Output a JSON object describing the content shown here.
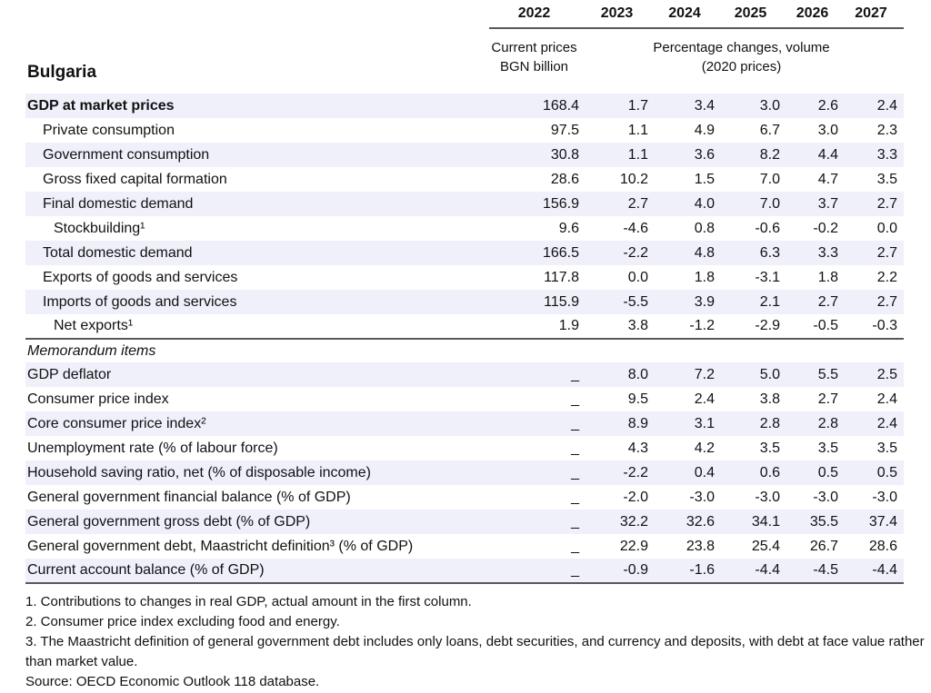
{
  "table": {
    "region_label": "Bulgaria",
    "years": [
      "2022",
      "2023",
      "2024",
      "2025",
      "2026",
      "2027"
    ],
    "unit_first": {
      "line1": "Current prices",
      "line2": "BGN billion"
    },
    "unit_rest": {
      "line1": "Percentage changes, volume",
      "line2": "(2020 prices)"
    },
    "rows": [
      {
        "type": "data",
        "label": "GDP at market prices",
        "indent": 0,
        "bold": true,
        "values": [
          "168.4",
          "1.7",
          "3.4",
          "3.0",
          "2.6",
          "2.4"
        ]
      },
      {
        "type": "data",
        "label": "Private consumption",
        "indent": 1,
        "values": [
          "97.5",
          "1.1",
          "4.9",
          "6.7",
          "3.0",
          "2.3"
        ]
      },
      {
        "type": "data",
        "label": "Government consumption",
        "indent": 1,
        "values": [
          "30.8",
          "1.1",
          "3.6",
          "8.2",
          "4.4",
          "3.3"
        ]
      },
      {
        "type": "data",
        "label": "Gross fixed capital formation",
        "indent": 1,
        "values": [
          "28.6",
          "10.2",
          "1.5",
          "7.0",
          "4.7",
          "3.5"
        ]
      },
      {
        "type": "data",
        "label": "Final domestic demand",
        "indent": 1,
        "values": [
          "156.9",
          "2.7",
          "4.0",
          "7.0",
          "3.7",
          "2.7"
        ]
      },
      {
        "type": "data",
        "label": "Stockbuilding¹",
        "indent": 2,
        "values": [
          "9.6",
          "-4.6",
          "0.8",
          "-0.6",
          "-0.2",
          "0.0"
        ]
      },
      {
        "type": "data",
        "label": "Total domestic demand",
        "indent": 1,
        "values": [
          "166.5",
          "-2.2",
          "4.8",
          "6.3",
          "3.3",
          "2.7"
        ]
      },
      {
        "type": "data",
        "label": "Exports of goods and services",
        "indent": 1,
        "values": [
          "117.8",
          "0.0",
          "1.8",
          "-3.1",
          "1.8",
          "2.2"
        ]
      },
      {
        "type": "data",
        "label": "Imports of goods and services",
        "indent": 1,
        "values": [
          "115.9",
          "-5.5",
          "3.9",
          "2.1",
          "2.7",
          "2.7"
        ]
      },
      {
        "type": "data",
        "label": "Net exports¹",
        "indent": 2,
        "values": [
          "1.9",
          "3.8",
          "-1.2",
          "-2.9",
          "-0.5",
          "-0.3"
        ]
      },
      {
        "type": "section",
        "label": "Memorandum items"
      },
      {
        "type": "data",
        "label": "GDP deflator",
        "indent": 0,
        "values": [
          "_",
          "8.0",
          "7.2",
          "5.0",
          "5.5",
          "2.5"
        ]
      },
      {
        "type": "data",
        "label": "Consumer price index",
        "indent": 0,
        "values": [
          "_",
          "9.5",
          "2.4",
          "3.8",
          "2.7",
          "2.4"
        ]
      },
      {
        "type": "data",
        "label": "Core consumer price index²",
        "indent": 0,
        "values": [
          "_",
          "8.9",
          "3.1",
          "2.8",
          "2.8",
          "2.4"
        ]
      },
      {
        "type": "data",
        "label": "Unemployment rate (% of labour force)",
        "indent": 0,
        "values": [
          "_",
          "4.3",
          "4.2",
          "3.5",
          "3.5",
          "3.5"
        ]
      },
      {
        "type": "data",
        "label": "Household saving ratio, net (% of disposable income)",
        "indent": 0,
        "values": [
          "_",
          "-2.2",
          "0.4",
          "0.6",
          "0.5",
          "0.5"
        ]
      },
      {
        "type": "data",
        "label": "General government financial balance (% of GDP)",
        "indent": 0,
        "values": [
          "_",
          "-2.0",
          "-3.0",
          "-3.0",
          "-3.0",
          "-3.0"
        ]
      },
      {
        "type": "data",
        "label": "General government gross debt (% of GDP)",
        "indent": 0,
        "values": [
          "_",
          "32.2",
          "32.6",
          "34.1",
          "35.5",
          "37.4"
        ]
      },
      {
        "type": "data",
        "label": "General government debt, Maastricht definition³ (% of GDP)",
        "indent": 0,
        "values": [
          "_",
          "22.9",
          "23.8",
          "25.4",
          "26.7",
          "28.6"
        ]
      },
      {
        "type": "data",
        "label": "Current account balance (% of GDP)",
        "indent": 0,
        "values": [
          "_",
          "-0.9",
          "-1.6",
          "-4.4",
          "-4.5",
          "-4.4"
        ]
      }
    ]
  },
  "footnotes": [
    "1. Contributions to changes in real GDP, actual amount in the first column.",
    "2. Consumer price index excluding food and energy.",
    "3. The Maastricht definition of general government debt includes only loans, debt securities, and currency and deposits, with debt at face value rather than market value.",
    "Source: OECD Economic Outlook 118 database."
  ],
  "colors": {
    "row_shading": "#eff0fa",
    "rule": "#58595b",
    "text": "#111111"
  }
}
